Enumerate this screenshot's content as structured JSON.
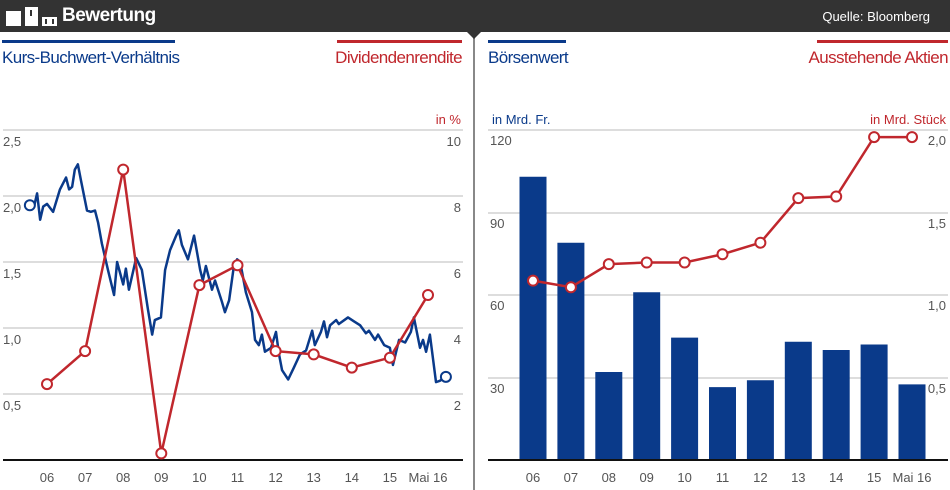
{
  "header": {
    "title": "Bewertung",
    "source": "Quelle: Bloomberg"
  },
  "colors": {
    "blue": "#0a3a8a",
    "red": "#c0272d",
    "header_bg": "#333333",
    "grid": "#dddddd"
  },
  "chart_data": [
    {
      "type": "line",
      "title_left": "Kurs-Buchwert-Verhältnis",
      "title_right": "Dividendenrendite",
      "unit_right": "in %",
      "x_ticks": [
        "06",
        "07",
        "08",
        "09",
        "10",
        "11",
        "12",
        "13",
        "14",
        "15",
        "Mai 16"
      ],
      "y_left_ticks": [
        "2,5",
        "2,0",
        "1,5",
        "1,0",
        "0,5"
      ],
      "y_left_range": [
        0,
        2.5
      ],
      "y_right_ticks": [
        "10",
        "8",
        "6",
        "4",
        "2"
      ],
      "y_right_range": [
        0,
        10
      ],
      "grid": true,
      "series": [
        {
          "name": "Kurs-Buchwert-Verhältnis",
          "axis": "left",
          "color": "#0a3a8a",
          "x": [
            2005.55,
            2005.66,
            2005.74,
            2005.82,
            2005.9,
            2006.0,
            2006.16,
            2006.34,
            2006.5,
            2006.58,
            2006.66,
            2006.73,
            2006.81,
            2006.89,
            2007.05,
            2007.15,
            2007.26,
            2007.34,
            2007.44,
            2007.6,
            2007.76,
            2007.84,
            2008.0,
            2008.07,
            2008.15,
            2008.34,
            2008.49,
            2008.65,
            2008.76,
            2008.83,
            2008.99,
            2009.1,
            2009.23,
            2009.39,
            2009.46,
            2009.54,
            2009.7,
            2009.86,
            2010.02,
            2010.09,
            2010.17,
            2010.33,
            2010.41,
            2010.59,
            2010.67,
            2010.78,
            2010.91,
            2010.99,
            2011.07,
            2011.22,
            2011.38,
            2011.46,
            2011.56,
            2011.64,
            2011.72,
            2011.88,
            2012.01,
            2012.09,
            2012.17,
            2012.33,
            2012.48,
            2012.64,
            2012.8,
            2012.96,
            2013.03,
            2013.19,
            2013.27,
            2013.35,
            2013.43,
            2013.59,
            2013.66,
            2013.9,
            2014.06,
            2014.22,
            2014.37,
            2014.45,
            2014.61,
            2014.69,
            2014.85,
            2015.0,
            2015.08,
            2015.24,
            2015.4,
            2015.55,
            2015.63,
            2015.79,
            2015.87,
            2015.95,
            2016.05,
            2016.13,
            2016.21,
            2016.31,
            2016.47
          ],
          "y": [
            1.93,
            1.92,
            2.02,
            1.82,
            1.92,
            1.94,
            1.88,
            2.05,
            2.14,
            2.05,
            2.07,
            2.2,
            2.24,
            2.12,
            1.89,
            1.88,
            1.89,
            1.8,
            1.64,
            1.44,
            1.25,
            1.5,
            1.33,
            1.45,
            1.29,
            1.53,
            1.44,
            1.14,
            0.95,
            1.06,
            1.08,
            1.44,
            1.59,
            1.7,
            1.74,
            1.63,
            1.52,
            1.7,
            1.44,
            1.36,
            1.47,
            1.29,
            1.36,
            1.2,
            1.12,
            1.21,
            1.48,
            1.52,
            1.5,
            1.27,
            1.12,
            0.91,
            0.87,
            0.95,
            0.82,
            0.85,
            0.97,
            0.8,
            0.68,
            0.61,
            0.7,
            0.8,
            0.83,
            0.98,
            0.87,
            0.97,
            1.05,
            0.93,
            1.02,
            1.06,
            1.03,
            1.08,
            1.05,
            1.02,
            0.96,
            0.98,
            0.91,
            0.95,
            0.87,
            0.85,
            0.72,
            0.91,
            0.89,
            0.97,
            1.08,
            0.85,
            0.91,
            0.82,
            0.95,
            0.77,
            0.59,
            0.6,
            0.63
          ]
        },
        {
          "name": "Dividendenrendite",
          "axis": "right",
          "color": "#c0272d",
          "values": [
            2.3,
            3.3,
            8.8,
            0.2,
            5.3,
            5.9,
            3.3,
            3.2,
            2.8,
            3.1,
            5.0
          ]
        }
      ]
    },
    {
      "type": "bar",
      "title_left": "Börsenwert",
      "title_right": "Ausstehende Aktien",
      "unit_left": "in Mrd. Fr.",
      "unit_right": "in Mrd. Stück",
      "categories": [
        "06",
        "07",
        "08",
        "09",
        "10",
        "11",
        "12",
        "13",
        "14",
        "15",
        "Mai 16"
      ],
      "y_left_ticks": [
        "120",
        "90",
        "60",
        "30"
      ],
      "y_left_range": [
        0,
        120
      ],
      "y_right_ticks": [
        "2,0",
        "1,5",
        "1,0",
        "0,5"
      ],
      "y_right_range": [
        0,
        2.0
      ],
      "grid": true,
      "series": [
        {
          "name": "Börsenwert",
          "type": "bar",
          "axis": "left",
          "color": "#0a3a8a",
          "values": [
            103,
            79,
            32,
            61,
            44.5,
            26.5,
            29,
            43,
            40,
            42,
            27.5
          ]
        },
        {
          "name": "Ausstehende Aktien",
          "type": "line",
          "axis": "right",
          "color": "#c0272d",
          "values": [
            1.09,
            1.05,
            1.19,
            1.2,
            1.2,
            1.25,
            1.32,
            1.59,
            1.6,
            1.96,
            1.96
          ]
        }
      ]
    }
  ]
}
